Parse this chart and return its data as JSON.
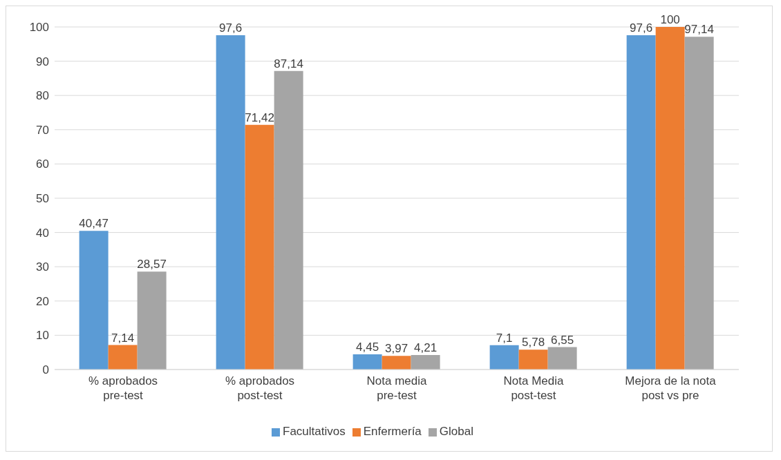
{
  "chart_data": {
    "type": "bar",
    "categories": [
      "% aprobados pre-test",
      "% aprobados post-test",
      "Nota media pre-test",
      "Nota Media post-test",
      "Mejora de la nota post vs pre"
    ],
    "series": [
      {
        "name": "Facultativos",
        "color": "#5b9bd5",
        "values": [
          40.47,
          97.6,
          4.45,
          7.1,
          97.6
        ],
        "value_labels": [
          "40,47",
          "97,6",
          "4,45",
          "7,1",
          "97,6"
        ]
      },
      {
        "name": "Enfermería",
        "color": "#ed7d31",
        "values": [
          7.14,
          71.42,
          3.97,
          5.78,
          100
        ],
        "value_labels": [
          "7,14",
          "71,42",
          "3,97",
          "5,78",
          "100"
        ]
      },
      {
        "name": "Global",
        "color": "#a5a5a5",
        "values": [
          28.57,
          87.14,
          4.21,
          6.55,
          97.14
        ],
        "value_labels": [
          "28,57",
          "87,14",
          "4,21",
          "6,55",
          "97,14"
        ]
      }
    ],
    "ylim": [
      0,
      100
    ],
    "yticks": [
      0,
      10,
      20,
      30,
      40,
      50,
      60,
      70,
      80,
      90,
      100
    ],
    "grid": "y",
    "legend": "bottom"
  }
}
